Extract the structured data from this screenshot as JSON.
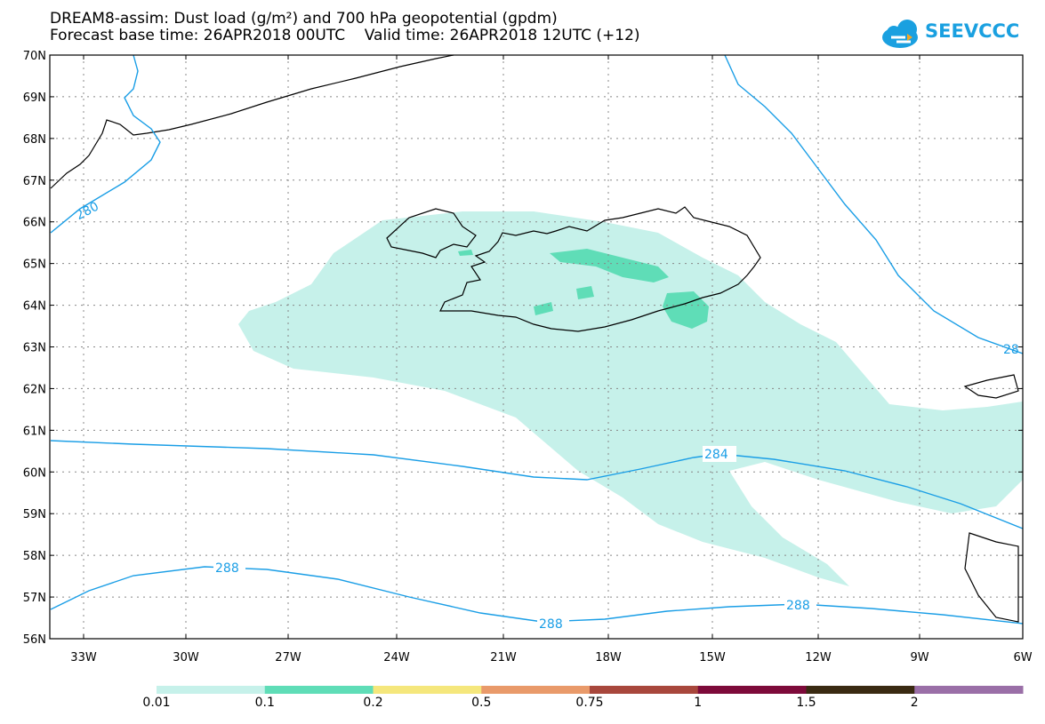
{
  "title_line1": "DREAM8-assim: Dust load (g/m²) and 700 hPa geopotential (gpdm)",
  "title_line2": "Forecast base time: 26APR2018 00UTC    Valid time: 26APR2018 12UTC (+12)",
  "logo_text": "SEEVCCC",
  "lat_labels": [
    "70N",
    "69N",
    "68N",
    "67N",
    "66N",
    "65N",
    "64N",
    "63N",
    "62N",
    "61N",
    "60N",
    "59N",
    "58N",
    "57N",
    "56N"
  ],
  "lon_labels": [
    "33W",
    "30W",
    "27W",
    "24W",
    "21W",
    "18W",
    "15W",
    "12W",
    "9W",
    "6W"
  ],
  "contour_labels": [
    "280",
    "28",
    "284",
    "288",
    "288",
    "288"
  ],
  "colorbar": {
    "colors": [
      "#c6f1ea",
      "#5fddb7",
      "#f5e77c",
      "#e99a6a",
      "#a8473c",
      "#7d0a3a",
      "#3a2a12",
      "#9a6fa7"
    ],
    "labels": [
      "0.01",
      "0.1",
      "0.2",
      "0.5",
      "0.75",
      "1",
      "1.5",
      "2"
    ]
  },
  "colors": {
    "dust_low": "#c6f1ea",
    "dust_mid": "#5fddb7",
    "contour": "#1a9ee6",
    "coast": "#000000"
  }
}
